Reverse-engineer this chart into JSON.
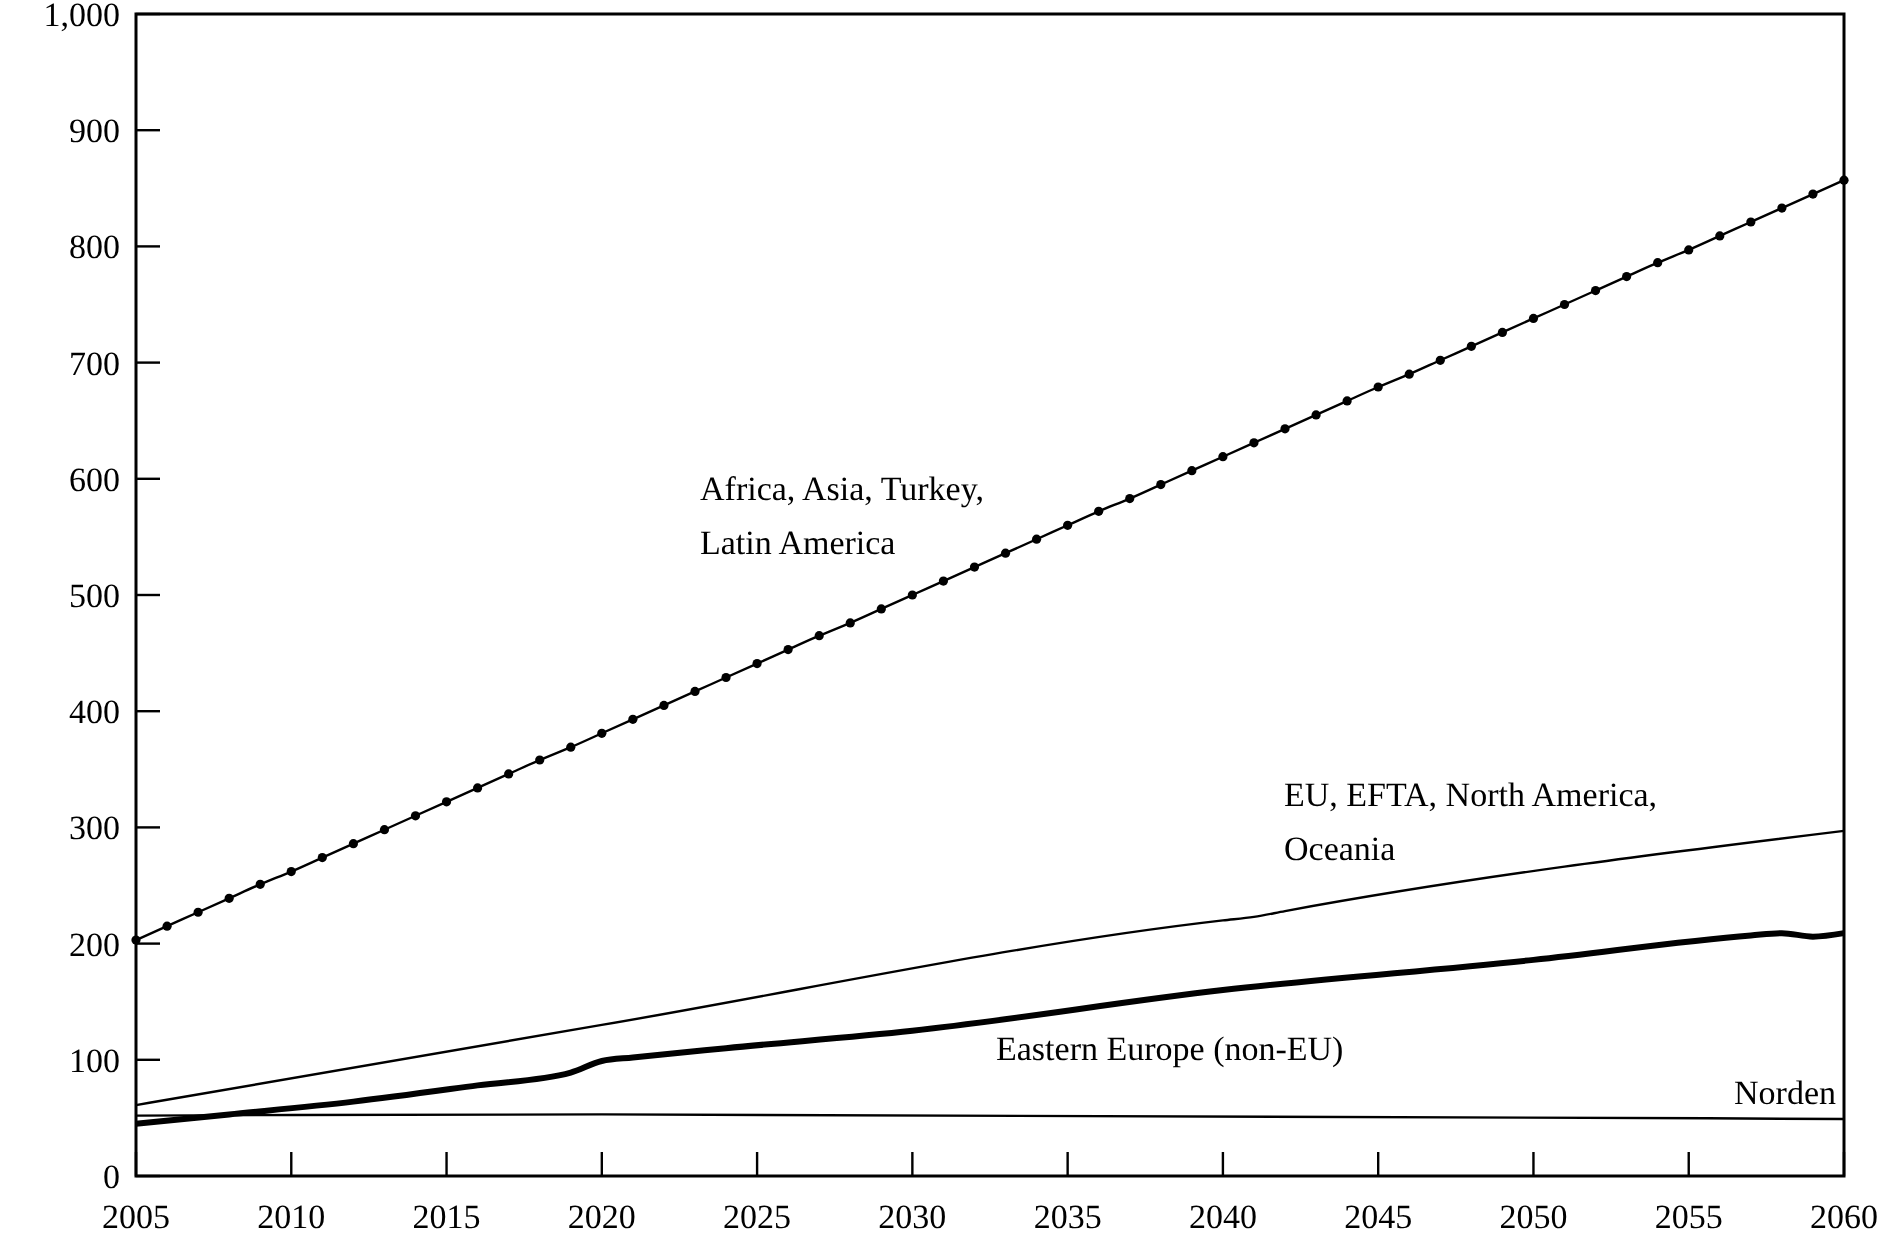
{
  "chart_data": {
    "type": "line",
    "xlim": [
      2005,
      2060
    ],
    "xticks": [
      2005,
      2010,
      2015,
      2020,
      2025,
      2030,
      2035,
      2040,
      2045,
      2050,
      2055,
      2060
    ],
    "ylim": [
      0,
      1000
    ],
    "yticks": [
      0,
      100,
      200,
      300,
      400,
      500,
      600,
      700,
      800,
      900,
      {
        "value": 1000,
        "label": "1,000"
      }
    ],
    "grid": false,
    "series": [
      {
        "name": "Africa, Asia, Turkey, Latin America",
        "color": "#000000",
        "marker": "circle",
        "x": [
          2005,
          2006,
          2007,
          2008,
          2009,
          2010,
          2011,
          2012,
          2013,
          2014,
          2015,
          2016,
          2017,
          2018,
          2019,
          2020,
          2021,
          2022,
          2023,
          2024,
          2025,
          2026,
          2027,
          2028,
          2029,
          2030,
          2031,
          2032,
          2033,
          2034,
          2035,
          2036,
          2037,
          2038,
          2039,
          2040,
          2041,
          2042,
          2043,
          2044,
          2045,
          2046,
          2047,
          2048,
          2049,
          2050,
          2051,
          2052,
          2053,
          2054,
          2055,
          2056,
          2057,
          2058,
          2059,
          2060
        ],
        "values": [
          203,
          215,
          227,
          239,
          251,
          262,
          274,
          286,
          298,
          310,
          322,
          334,
          346,
          358,
          369,
          381,
          393,
          405,
          417,
          429,
          441,
          453,
          465,
          476,
          488,
          500,
          512,
          524,
          536,
          548,
          560,
          572,
          583,
          595,
          607,
          619,
          631,
          643,
          655,
          667,
          679,
          690,
          702,
          714,
          726,
          738,
          750,
          762,
          774,
          786,
          797,
          809,
          821,
          833,
          845,
          857
        ]
      },
      {
        "name": "EU, EFTA, North America, Oceania",
        "color": "#000000",
        "marker": "none",
        "x": [
          2005,
          2020,
          2040,
          2041,
          2042,
          2060
        ],
        "values": [
          61,
          130,
          220,
          223,
          228,
          297
        ]
      },
      {
        "name": "Eastern Europe (non-EU)",
        "color": "#000000",
        "marker": "none",
        "x": [
          2005,
          2008,
          2012,
          2016,
          2019,
          2020,
          2021,
          2024,
          2030,
          2040,
          2050,
          2057,
          2058,
          2059,
          2060
        ],
        "values": [
          45,
          53,
          64,
          78,
          89,
          99,
          102,
          110,
          125,
          160,
          186,
          207,
          209,
          206,
          209
        ]
      },
      {
        "name": "Norden",
        "color": "#000000",
        "marker": "none",
        "x": [
          2005,
          2020,
          2060
        ],
        "values": [
          52,
          53,
          49
        ]
      }
    ]
  }
}
